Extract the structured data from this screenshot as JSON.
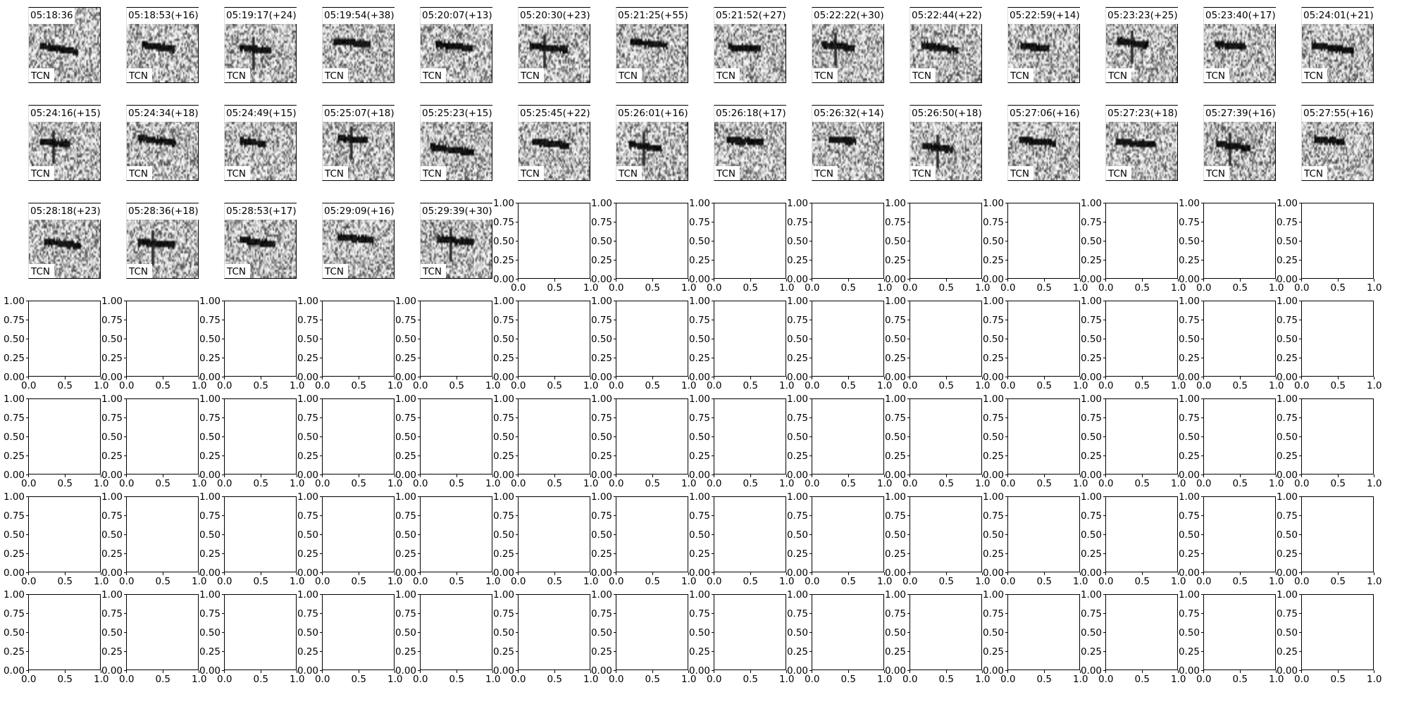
{
  "chart_data": {
    "type": "heatmap",
    "grid": {
      "rows": 7,
      "cols": 14
    },
    "panels": [
      {
        "title": "05:18:36",
        "station": "TCN"
      },
      {
        "title": "05:18:53(+16)",
        "station": "TCN"
      },
      {
        "title": "05:19:17(+24)",
        "station": "TCN"
      },
      {
        "title": "05:19:54(+38)",
        "station": "TCN"
      },
      {
        "title": "05:20:07(+13)",
        "station": "TCN"
      },
      {
        "title": "05:20:30(+23)",
        "station": "TCN"
      },
      {
        "title": "05:21:25(+55)",
        "station": "TCN"
      },
      {
        "title": "05:21:52(+27)",
        "station": "TCN"
      },
      {
        "title": "05:22:22(+30)",
        "station": "TCN"
      },
      {
        "title": "05:22:44(+22)",
        "station": "TCN"
      },
      {
        "title": "05:22:59(+14)",
        "station": "TCN"
      },
      {
        "title": "05:23:23(+25)",
        "station": "TCN"
      },
      {
        "title": "05:23:40(+17)",
        "station": "TCN"
      },
      {
        "title": "05:24:01(+21)",
        "station": "TCN"
      },
      {
        "title": "05:24:16(+15)",
        "station": "TCN"
      },
      {
        "title": "05:24:34(+18)",
        "station": "TCN"
      },
      {
        "title": "05:24:49(+15)",
        "station": "TCN"
      },
      {
        "title": "05:25:07(+18)",
        "station": "TCN"
      },
      {
        "title": "05:25:23(+15)",
        "station": "TCN"
      },
      {
        "title": "05:25:45(+22)",
        "station": "TCN"
      },
      {
        "title": "05:26:01(+16)",
        "station": "TCN"
      },
      {
        "title": "05:26:18(+17)",
        "station": "TCN"
      },
      {
        "title": "05:26:32(+14)",
        "station": "TCN"
      },
      {
        "title": "05:26:50(+18)",
        "station": "TCN"
      },
      {
        "title": "05:27:06(+16)",
        "station": "TCN"
      },
      {
        "title": "05:27:23(+18)",
        "station": "TCN"
      },
      {
        "title": "05:27:39(+16)",
        "station": "TCN"
      },
      {
        "title": "05:27:55(+16)",
        "station": "TCN"
      },
      {
        "title": "05:28:18(+23)",
        "station": "TCN"
      },
      {
        "title": "05:28:36(+18)",
        "station": "TCN"
      },
      {
        "title": "05:28:53(+17)",
        "station": "TCN"
      },
      {
        "title": "05:29:09(+16)",
        "station": "TCN"
      },
      {
        "title": "05:29:39(+30)",
        "station": "TCN"
      }
    ],
    "empty_axes": {
      "xlim": [
        0,
        1
      ],
      "ylim": [
        0,
        1
      ],
      "xticks": [
        "0.0",
        "0.5",
        "1.0"
      ],
      "yticks": [
        "0.00",
        "0.25",
        "0.50",
        "0.75",
        "1.00"
      ]
    },
    "colormap": "grayscale (white to black)",
    "colors": {
      "background": "#ffffff",
      "axes": "#000000"
    }
  }
}
